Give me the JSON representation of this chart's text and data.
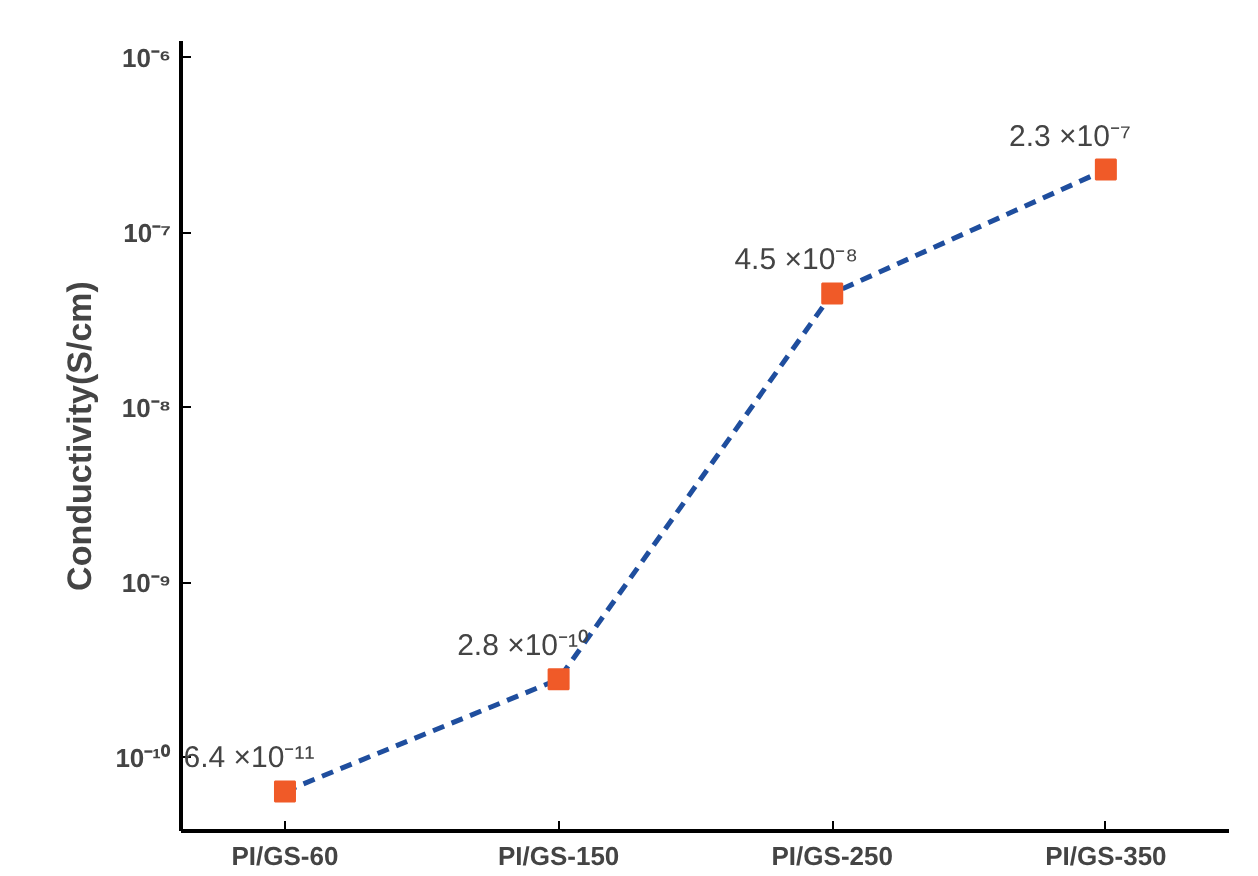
{
  "chart_data": {
    "type": "line",
    "ylabel": "Conductivity(S/cm)",
    "categories": [
      "PI/GS-60",
      "PI/GS-150",
      "PI/GS-250",
      "PI/GS-350"
    ],
    "series": [
      {
        "color": "#1f4e9e",
        "colors": [
          "#f05a28",
          "#f05a28",
          "#f05a28",
          "#f05a28"
        ],
        "values": [
          6.4e-11,
          2.8e-10,
          4.5e-08,
          2.3e-07
        ],
        "value_labels": [
          "6.4 ×10⁻¹¹",
          "2.8 ×10⁻¹⁰",
          "4.5 ×10⁻⁸",
          "2.3 ×10⁻⁷"
        ]
      }
    ],
    "log": "y",
    "ylim": [
      3.8e-11,
      1.25e-06
    ],
    "yticks": [
      {
        "value": 1e-10,
        "label": "10⁻¹⁰"
      },
      {
        "value": 1e-09,
        "label": "10⁻⁹"
      },
      {
        "value": 1e-08,
        "label": "10⁻⁸"
      },
      {
        "value": 1e-07,
        "label": "10⁻⁷"
      },
      {
        "value": 1e-06,
        "label": "10⁻⁶"
      }
    ],
    "grid": false,
    "marker": "square",
    "line_style": "dashed"
  }
}
